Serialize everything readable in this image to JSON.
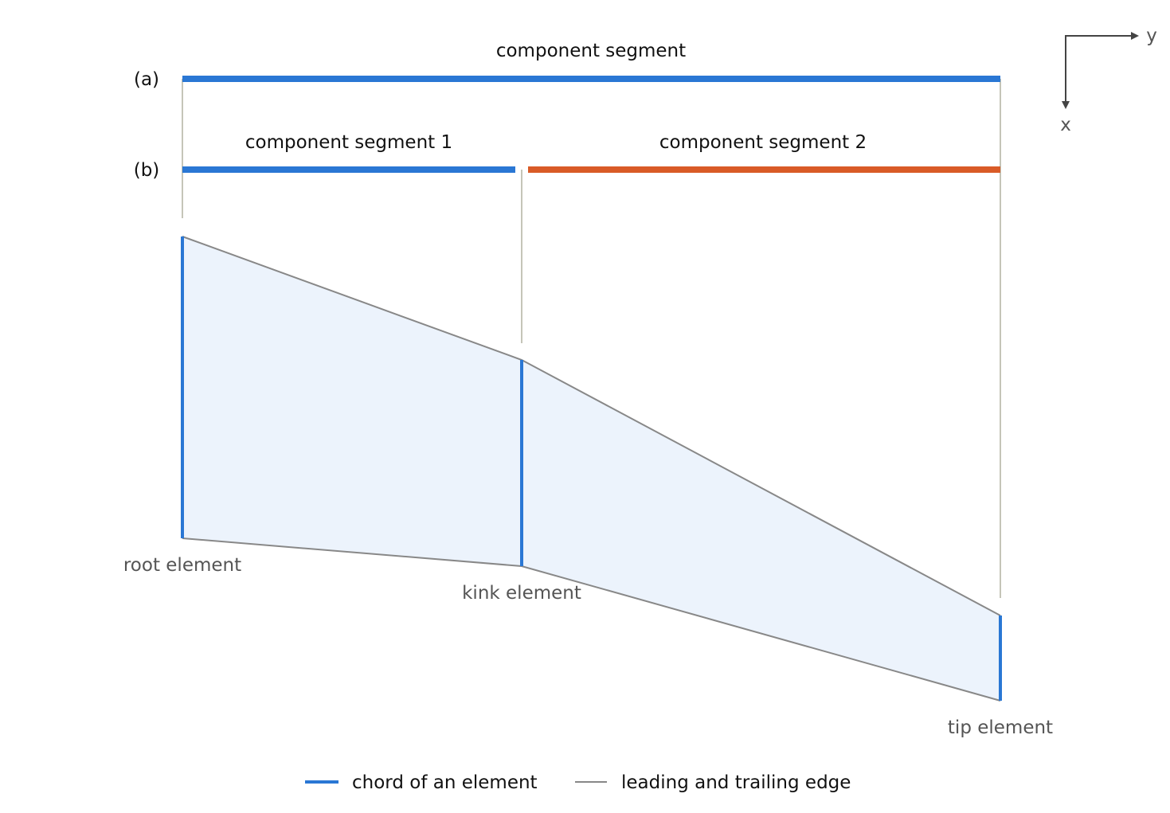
{
  "colors": {
    "chord": "#2a77d4",
    "segment_2": "#d95b27",
    "edge_line": "#888888",
    "guide_line": "#c5c5b8",
    "planform_fill": "#ecf3fc",
    "axis": "#444444"
  },
  "rows": {
    "a": {
      "tag": "(a)",
      "segments": [
        {
          "label": "component segment"
        }
      ]
    },
    "b": {
      "tag": "(b)",
      "segments": [
        {
          "label": "component segment 1"
        },
        {
          "label": "component segment 2"
        }
      ]
    }
  },
  "elements": {
    "root": "root element",
    "kink": "kink element",
    "tip": "tip element"
  },
  "axes": {
    "y": "y",
    "x": "x"
  },
  "legend": {
    "chord": "chord of an element",
    "edge": "leading and trailing edge"
  }
}
